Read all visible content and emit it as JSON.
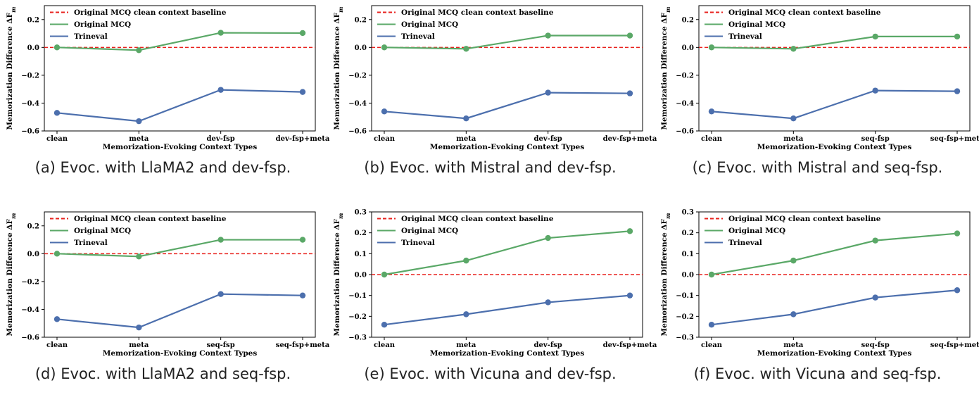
{
  "colors": {
    "baseline": "#e8221e",
    "original": "#5aa867",
    "trineval": "#4c6fad"
  },
  "chart_data": [
    {
      "type": "line",
      "caption": "(a) Evoc. with LlaMA2 and dev-fsp.",
      "categories": [
        "clean",
        "meta",
        "dev-fsp",
        "dev-fsp+meta"
      ],
      "xlabel": "Memorization-Evoking Context Types",
      "ylabel": "Memorization Difference ΔF",
      "ylabel_sub": "m",
      "ylim": [
        -0.6,
        0.3
      ],
      "yticks": [
        -0.6,
        -0.4,
        -0.2,
        0.0,
        0.2
      ],
      "ytick_labels": [
        "−0.6",
        "−0.4",
        "−0.2",
        "0.0",
        "0.2"
      ],
      "baseline": {
        "name": "Original MCQ clean context baseline",
        "value": 0.0
      },
      "series": [
        {
          "name": "Original MCQ",
          "values": [
            0.0,
            -0.02,
            0.105,
            0.103
          ]
        },
        {
          "name": "Trineval",
          "values": [
            -0.47,
            -0.53,
            -0.305,
            -0.32
          ]
        }
      ],
      "legend": "top-left",
      "grid": false
    },
    {
      "type": "line",
      "caption": "(b) Evoc. with Mistral and dev-fsp.",
      "categories": [
        "clean",
        "meta",
        "dev-fsp",
        "dev-fsp+meta"
      ],
      "xlabel": "Memorization-Evoking Context Types",
      "ylabel": "Memorization Difference ΔF",
      "ylabel_sub": "m",
      "ylim": [
        -0.6,
        0.3
      ],
      "yticks": [
        -0.6,
        -0.4,
        -0.2,
        0.0,
        0.2
      ],
      "ytick_labels": [
        "−0.6",
        "−0.4",
        "−0.2",
        "0.0",
        "0.2"
      ],
      "baseline": {
        "name": "Original MCQ clean context baseline",
        "value": 0.0
      },
      "series": [
        {
          "name": "Original MCQ",
          "values": [
            0.0,
            -0.01,
            0.085,
            0.085
          ]
        },
        {
          "name": "Trineval",
          "values": [
            -0.46,
            -0.51,
            -0.325,
            -0.33
          ]
        }
      ],
      "legend": "top-left",
      "grid": false
    },
    {
      "type": "line",
      "caption": "(c) Evoc. with Mistral and seq-fsp.",
      "categories": [
        "clean",
        "meta",
        "seq-fsp",
        "seq-fsp+meta"
      ],
      "xlabel": "Memorization-Evoking Context Types",
      "ylabel": "Memorization Difference ΔF",
      "ylabel_sub": "m",
      "ylim": [
        -0.6,
        0.3
      ],
      "yticks": [
        -0.6,
        -0.4,
        -0.2,
        0.0,
        0.2
      ],
      "ytick_labels": [
        "−0.6",
        "−0.4",
        "−0.2",
        "0.0",
        "0.2"
      ],
      "baseline": {
        "name": "Original MCQ clean context baseline",
        "value": 0.0
      },
      "series": [
        {
          "name": "Original MCQ",
          "values": [
            0.0,
            -0.01,
            0.078,
            0.078
          ]
        },
        {
          "name": "Trineval",
          "values": [
            -0.46,
            -0.51,
            -0.31,
            -0.315
          ]
        }
      ],
      "legend": "top-left",
      "grid": false
    },
    {
      "type": "line",
      "caption": "(d) Evoc. with LlaMA2 and seq-fsp.",
      "categories": [
        "clean",
        "meta",
        "seq-fsp",
        "seq-fsp+meta"
      ],
      "xlabel": "Memorization-Evoking Context Types",
      "ylabel": "Memorization Difference ΔF",
      "ylabel_sub": "m",
      "ylim": [
        -0.6,
        0.3
      ],
      "yticks": [
        -0.6,
        -0.4,
        -0.2,
        0.0,
        0.2
      ],
      "ytick_labels": [
        "−0.6",
        "−0.4",
        "−0.2",
        "0.0",
        "0.2"
      ],
      "baseline": {
        "name": "Original MCQ clean context baseline",
        "value": 0.0
      },
      "series": [
        {
          "name": "Original MCQ",
          "values": [
            0.0,
            -0.02,
            0.1,
            0.1
          ]
        },
        {
          "name": "Trineval",
          "values": [
            -0.47,
            -0.53,
            -0.29,
            -0.3
          ]
        }
      ],
      "legend": "top-left",
      "grid": false
    },
    {
      "type": "line",
      "caption": "(e) Evoc. with Vicuna and dev-fsp.",
      "categories": [
        "clean",
        "meta",
        "dev-fsp",
        "dev-fsp+meta"
      ],
      "xlabel": "Memorization-Evoking Context Types",
      "ylabel": "Memorization Difference ΔF",
      "ylabel_sub": "m",
      "ylim": [
        -0.3,
        0.3
      ],
      "yticks": [
        -0.3,
        -0.2,
        -0.1,
        0.0,
        0.1,
        0.2,
        0.3
      ],
      "ytick_labels": [
        "−0.3",
        "−0.2",
        "−0.1",
        "0.0",
        "0.1",
        "0.2",
        "0.3"
      ],
      "baseline": {
        "name": "Original MCQ clean context baseline",
        "value": 0.0
      },
      "series": [
        {
          "name": "Original MCQ",
          "values": [
            0.0,
            0.067,
            0.175,
            0.208
          ]
        },
        {
          "name": "Trineval",
          "values": [
            -0.24,
            -0.19,
            -0.133,
            -0.1
          ]
        }
      ],
      "legend": "top-left",
      "grid": false
    },
    {
      "type": "line",
      "caption": "(f) Evoc. with Vicuna and seq-fsp.",
      "categories": [
        "clean",
        "meta",
        "seq-fsp",
        "seq-fsp+meta"
      ],
      "xlabel": "Memorization-Evoking Context Types",
      "ylabel": "Memorization Difference ΔF",
      "ylabel_sub": "m",
      "ylim": [
        -0.3,
        0.3
      ],
      "yticks": [
        -0.3,
        -0.2,
        -0.1,
        0.0,
        0.1,
        0.2,
        0.3
      ],
      "ytick_labels": [
        "−0.3",
        "−0.2",
        "−0.1",
        "0.0",
        "0.1",
        "0.2",
        "0.3"
      ],
      "baseline": {
        "name": "Original MCQ clean context baseline",
        "value": 0.0
      },
      "series": [
        {
          "name": "Original MCQ",
          "values": [
            0.0,
            0.067,
            0.163,
            0.197
          ]
        },
        {
          "name": "Trineval",
          "values": [
            -0.24,
            -0.19,
            -0.11,
            -0.075
          ]
        }
      ],
      "legend": "top-left",
      "grid": false
    }
  ]
}
